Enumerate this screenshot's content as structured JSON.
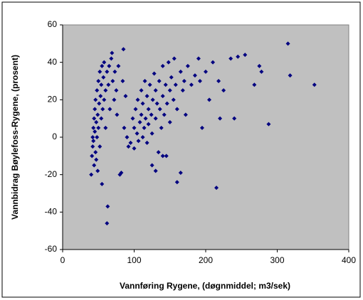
{
  "chart_data": {
    "type": "scatter",
    "xlabel": "Vannføring Rygene, (døgnmiddel; m3/sek)",
    "ylabel": "Vannbidrag Bøylefoss-Rygene, (prosent)",
    "xlim": [
      0,
      400
    ],
    "xticks": [
      0,
      100,
      200,
      300,
      400
    ],
    "ylim": [
      -60,
      60
    ],
    "yticks": [
      -60,
      -40,
      -20,
      0,
      20,
      40,
      60
    ],
    "color": "#000080",
    "background": "#c0c0c0",
    "x": [
      40,
      41,
      42,
      42,
      43,
      43,
      44,
      44,
      45,
      45,
      46,
      46,
      47,
      47,
      48,
      48,
      49,
      49,
      50,
      50,
      51,
      52,
      52,
      53,
      54,
      54,
      55,
      55,
      56,
      57,
      58,
      58,
      60,
      60,
      62,
      63,
      62,
      64,
      65,
      66,
      68,
      69,
      70,
      72,
      73,
      75,
      76,
      78,
      80,
      82,
      85,
      84,
      86,
      88,
      90,
      92,
      95,
      98,
      100,
      100,
      102,
      104,
      105,
      106,
      108,
      110,
      110,
      112,
      112,
      114,
      115,
      116,
      118,
      118,
      120,
      120,
      122,
      124,
      125,
      126,
      128,
      130,
      130,
      132,
      134,
      135,
      136,
      138,
      140,
      140,
      142,
      144,
      145,
      146,
      148,
      150,
      150,
      152,
      155,
      156,
      158,
      160,
      160,
      165,
      165,
      168,
      170,
      172,
      175,
      180,
      185,
      190,
      192,
      195,
      200,
      205,
      210,
      215,
      218,
      220,
      225,
      235,
      240,
      245,
      255,
      268,
      275,
      278,
      288,
      315,
      318,
      352,
      140,
      125,
      130
    ],
    "values": [
      -20,
      -10,
      -5,
      0,
      5,
      -2,
      10,
      -15,
      3,
      15,
      -8,
      20,
      8,
      -12,
      25,
      0,
      12,
      -18,
      30,
      5,
      18,
      -5,
      35,
      22,
      10,
      28,
      38,
      -25,
      15,
      32,
      20,
      40,
      25,
      5,
      35,
      -37,
      -46,
      28,
      38,
      15,
      42,
      45,
      30,
      20,
      35,
      25,
      12,
      38,
      -20,
      -19,
      47,
      30,
      5,
      22,
      0,
      -5,
      -3,
      10,
      5,
      -6,
      15,
      2,
      20,
      -2,
      8,
      12,
      25,
      0,
      18,
      5,
      30,
      10,
      -3,
      22,
      15,
      7,
      28,
      12,
      2,
      20,
      34,
      10,
      25,
      18,
      -8,
      30,
      15,
      5,
      22,
      38,
      12,
      28,
      -10,
      18,
      40,
      25,
      8,
      32,
      20,
      42,
      28,
      -24,
      15,
      -19,
      35,
      25,
      30,
      12,
      38,
      28,
      33,
      42,
      30,
      5,
      35,
      20,
      40,
      -27,
      30,
      10,
      25,
      42,
      10,
      43,
      44,
      28,
      38,
      35,
      7,
      50,
      33,
      28,
      -10,
      -15,
      -18
    ]
  }
}
